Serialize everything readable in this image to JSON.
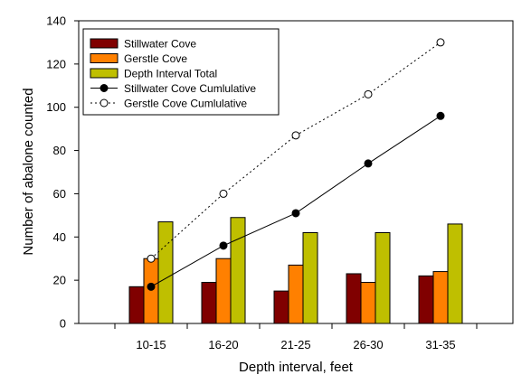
{
  "chart_data": {
    "type": "bar",
    "title": "",
    "xlabel": "Depth interval, feet",
    "ylabel": "Number of abalone counted",
    "categories": [
      "10-15",
      "16-20",
      "21-25",
      "26-30",
      "31-35"
    ],
    "ylim": [
      0,
      140
    ],
    "yticks": [
      "0",
      "20",
      "40",
      "60",
      "80",
      "100",
      "120",
      "140"
    ],
    "grid": false,
    "legend_position": "top-left",
    "series": [
      {
        "name": "Stillwater Cove",
        "kind": "bar",
        "color": "#800000",
        "values": [
          17,
          19,
          15,
          23,
          22
        ]
      },
      {
        "name": "Gerstle Cove",
        "kind": "bar",
        "color": "#FF8000",
        "values": [
          30,
          30,
          27,
          19,
          24
        ]
      },
      {
        "name": "Depth Interval Total",
        "kind": "bar",
        "color": "#BFBF00",
        "values": [
          47,
          49,
          42,
          42,
          46
        ]
      },
      {
        "name": "Stillwater Cove Cumlulative",
        "kind": "line",
        "style": "solid",
        "marker": "filled-circle",
        "color": "#000000",
        "values": [
          17,
          36,
          51,
          74,
          96
        ]
      },
      {
        "name": "Gerstle Cove Cumlulative",
        "kind": "line",
        "style": "dotted",
        "marker": "open-circle",
        "color": "#000000",
        "values": [
          30,
          60,
          87,
          106,
          130
        ]
      }
    ]
  }
}
